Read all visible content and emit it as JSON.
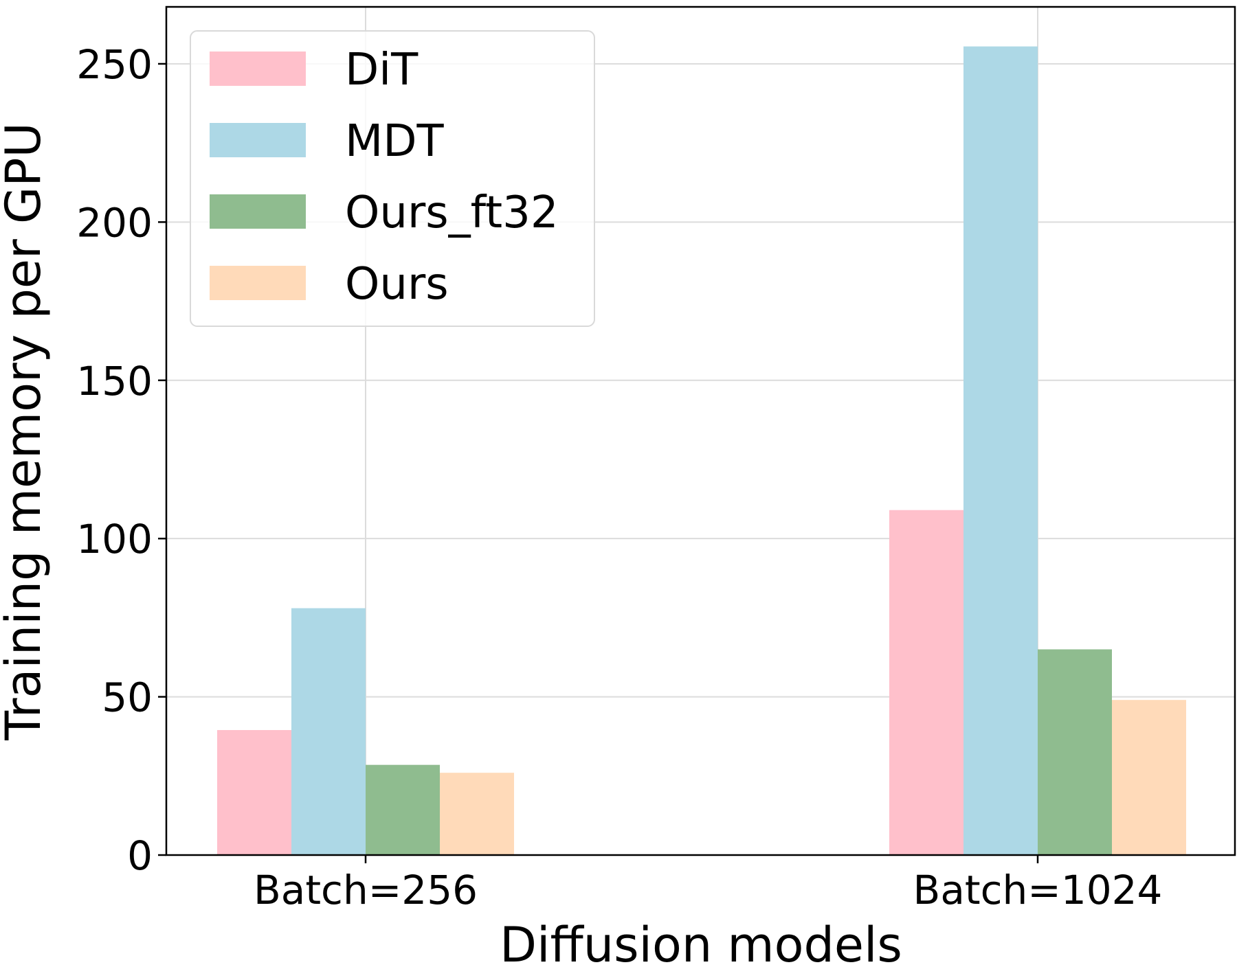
{
  "chart_data": {
    "type": "bar",
    "categories": [
      "Batch=256",
      "Batch=1024"
    ],
    "series": [
      {
        "name": "DiT",
        "values": [
          39.5,
          109
        ],
        "color": "#ffc0cb"
      },
      {
        "name": "MDT",
        "values": [
          78,
          255.5
        ],
        "color": "#add8e6"
      },
      {
        "name": "Ours_ft32",
        "values": [
          28.5,
          65
        ],
        "color": "#8fbc8f"
      },
      {
        "name": "Ours",
        "values": [
          26,
          49
        ],
        "color": "#ffdab9"
      }
    ],
    "xlabel": "Diffusion models",
    "ylabel": "Training memory per GPU",
    "ylim": [
      0,
      268
    ],
    "yticks": [
      0,
      50,
      100,
      150,
      200,
      250
    ],
    "grid": true,
    "legend": "top-left"
  }
}
